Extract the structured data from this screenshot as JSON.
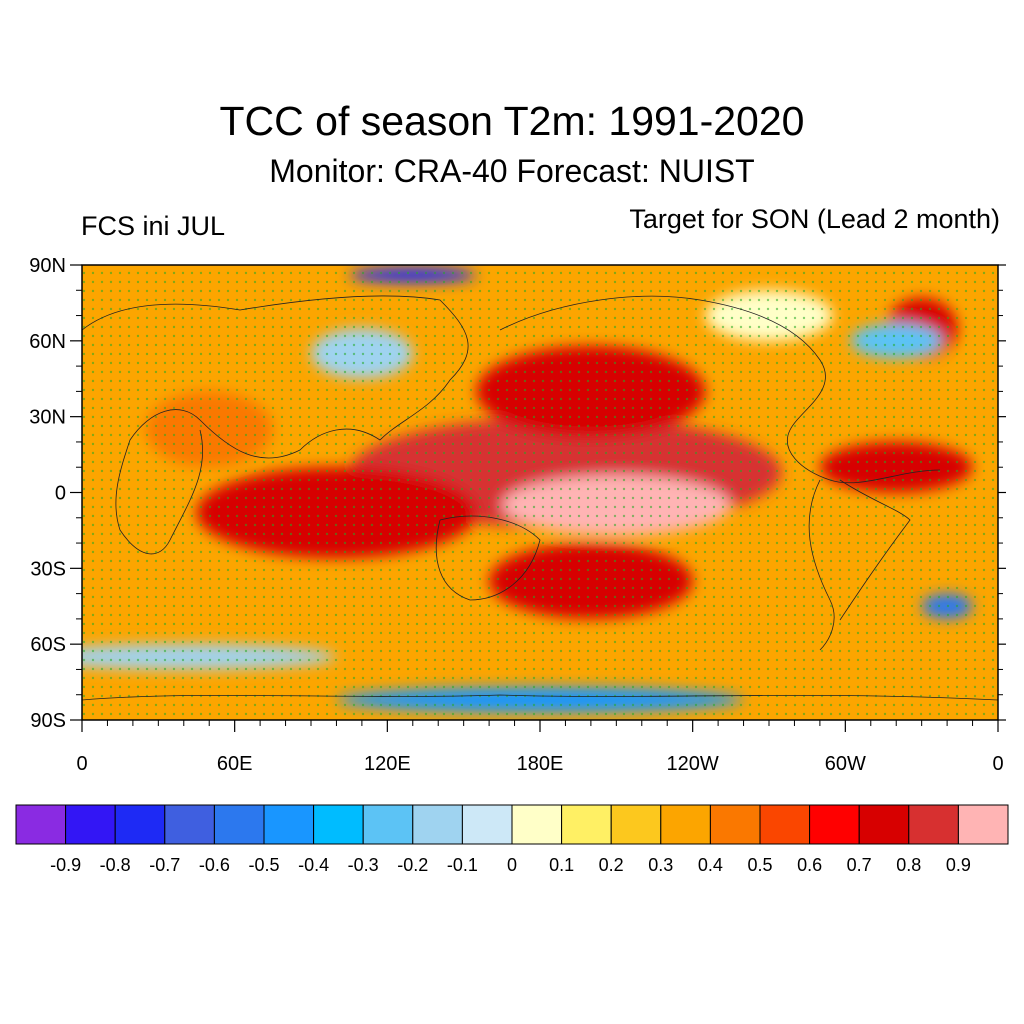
{
  "header": {
    "title": "TCC of season T2m: 1991-2020",
    "subtitle": "Monitor: CRA-40   Forecast: NUIST",
    "left_label": "FCS ini JUL",
    "right_label": "Target for SON (Lead 2 month)"
  },
  "map": {
    "projection": "cylindrical-equidistant",
    "lon_range": [
      0,
      360
    ],
    "lat_range": [
      -90,
      90
    ],
    "lat_ticks": [
      {
        "lat": 90,
        "label": "90N"
      },
      {
        "lat": 60,
        "label": "60N"
      },
      {
        "lat": 30,
        "label": "30N"
      },
      {
        "lat": 0,
        "label": "0"
      },
      {
        "lat": -30,
        "label": "30S"
      },
      {
        "lat": -60,
        "label": "60S"
      },
      {
        "lat": -90,
        "label": "90S"
      }
    ],
    "lon_ticks": [
      {
        "lon": 0,
        "label": "0"
      },
      {
        "lon": 60,
        "label": "60E"
      },
      {
        "lon": 120,
        "label": "120E"
      },
      {
        "lon": 180,
        "label": "180E"
      },
      {
        "lon": 240,
        "label": "120W"
      },
      {
        "lon": 300,
        "label": "60W"
      },
      {
        "lon": 360,
        "label": "0"
      }
    ],
    "regions": [
      {
        "lon": 190,
        "lat": 8,
        "rx": 85,
        "ry": 22,
        "level": 0.85
      },
      {
        "lon": 210,
        "lat": -5,
        "rx": 45,
        "ry": 12,
        "level": 0.92
      },
      {
        "lon": 200,
        "lat": 40,
        "rx": 45,
        "ry": 18,
        "level": 0.75
      },
      {
        "lon": 100,
        "lat": -8,
        "rx": 55,
        "ry": 18,
        "level": 0.7
      },
      {
        "lon": 200,
        "lat": -35,
        "rx": 40,
        "ry": 15,
        "level": 0.7
      },
      {
        "lon": 320,
        "lat": 10,
        "rx": 30,
        "ry": 10,
        "level": 0.7
      },
      {
        "lon": 330,
        "lat": 65,
        "rx": 14,
        "ry": 12,
        "level": 0.7
      },
      {
        "lon": 130,
        "lat": 86,
        "rx": 25,
        "ry": 3,
        "level": -0.75
      },
      {
        "lon": 340,
        "lat": -45,
        "rx": 10,
        "ry": 5,
        "level": -0.55
      },
      {
        "lon": 180,
        "lat": -82,
        "rx": 80,
        "ry": 5,
        "level": -0.45
      },
      {
        "lon": 40,
        "lat": -65,
        "rx": 60,
        "ry": 5,
        "level": -0.15
      },
      {
        "lon": 320,
        "lat": 60,
        "rx": 18,
        "ry": 7,
        "level": -0.25
      },
      {
        "lon": 110,
        "lat": 55,
        "rx": 20,
        "ry": 10,
        "level": -0.15
      },
      {
        "lon": 270,
        "lat": 70,
        "rx": 25,
        "ry": 10,
        "level": 0.05
      },
      {
        "lon": 50,
        "lat": 25,
        "rx": 25,
        "ry": 15,
        "level": 0.45
      },
      {
        "lon": 20,
        "lat": 55,
        "rx": 25,
        "ry": 15,
        "level": 0.3
      }
    ]
  },
  "colorbar": {
    "colors": [
      "#8a2be2",
      "#3316f5",
      "#1e2af5",
      "#3f5fe0",
      "#2c78ee",
      "#1996ff",
      "#00bcff",
      "#5cc3f5",
      "#9fd3f0",
      "#cde8f7",
      "#ffffc8",
      "#fff064",
      "#fcc81e",
      "#fca500",
      "#fa7800",
      "#fa4600",
      "#ff0000",
      "#d70000",
      "#d73030",
      "#ffb4b4"
    ],
    "labels": [
      "-0.9",
      "-0.8",
      "-0.7",
      "-0.6",
      "-0.5",
      "-0.4",
      "-0.3",
      "-0.2",
      "-0.1",
      "0",
      "0.1",
      "0.2",
      "0.3",
      "0.4",
      "0.5",
      "0.6",
      "0.7",
      "0.8",
      "0.9"
    ]
  }
}
